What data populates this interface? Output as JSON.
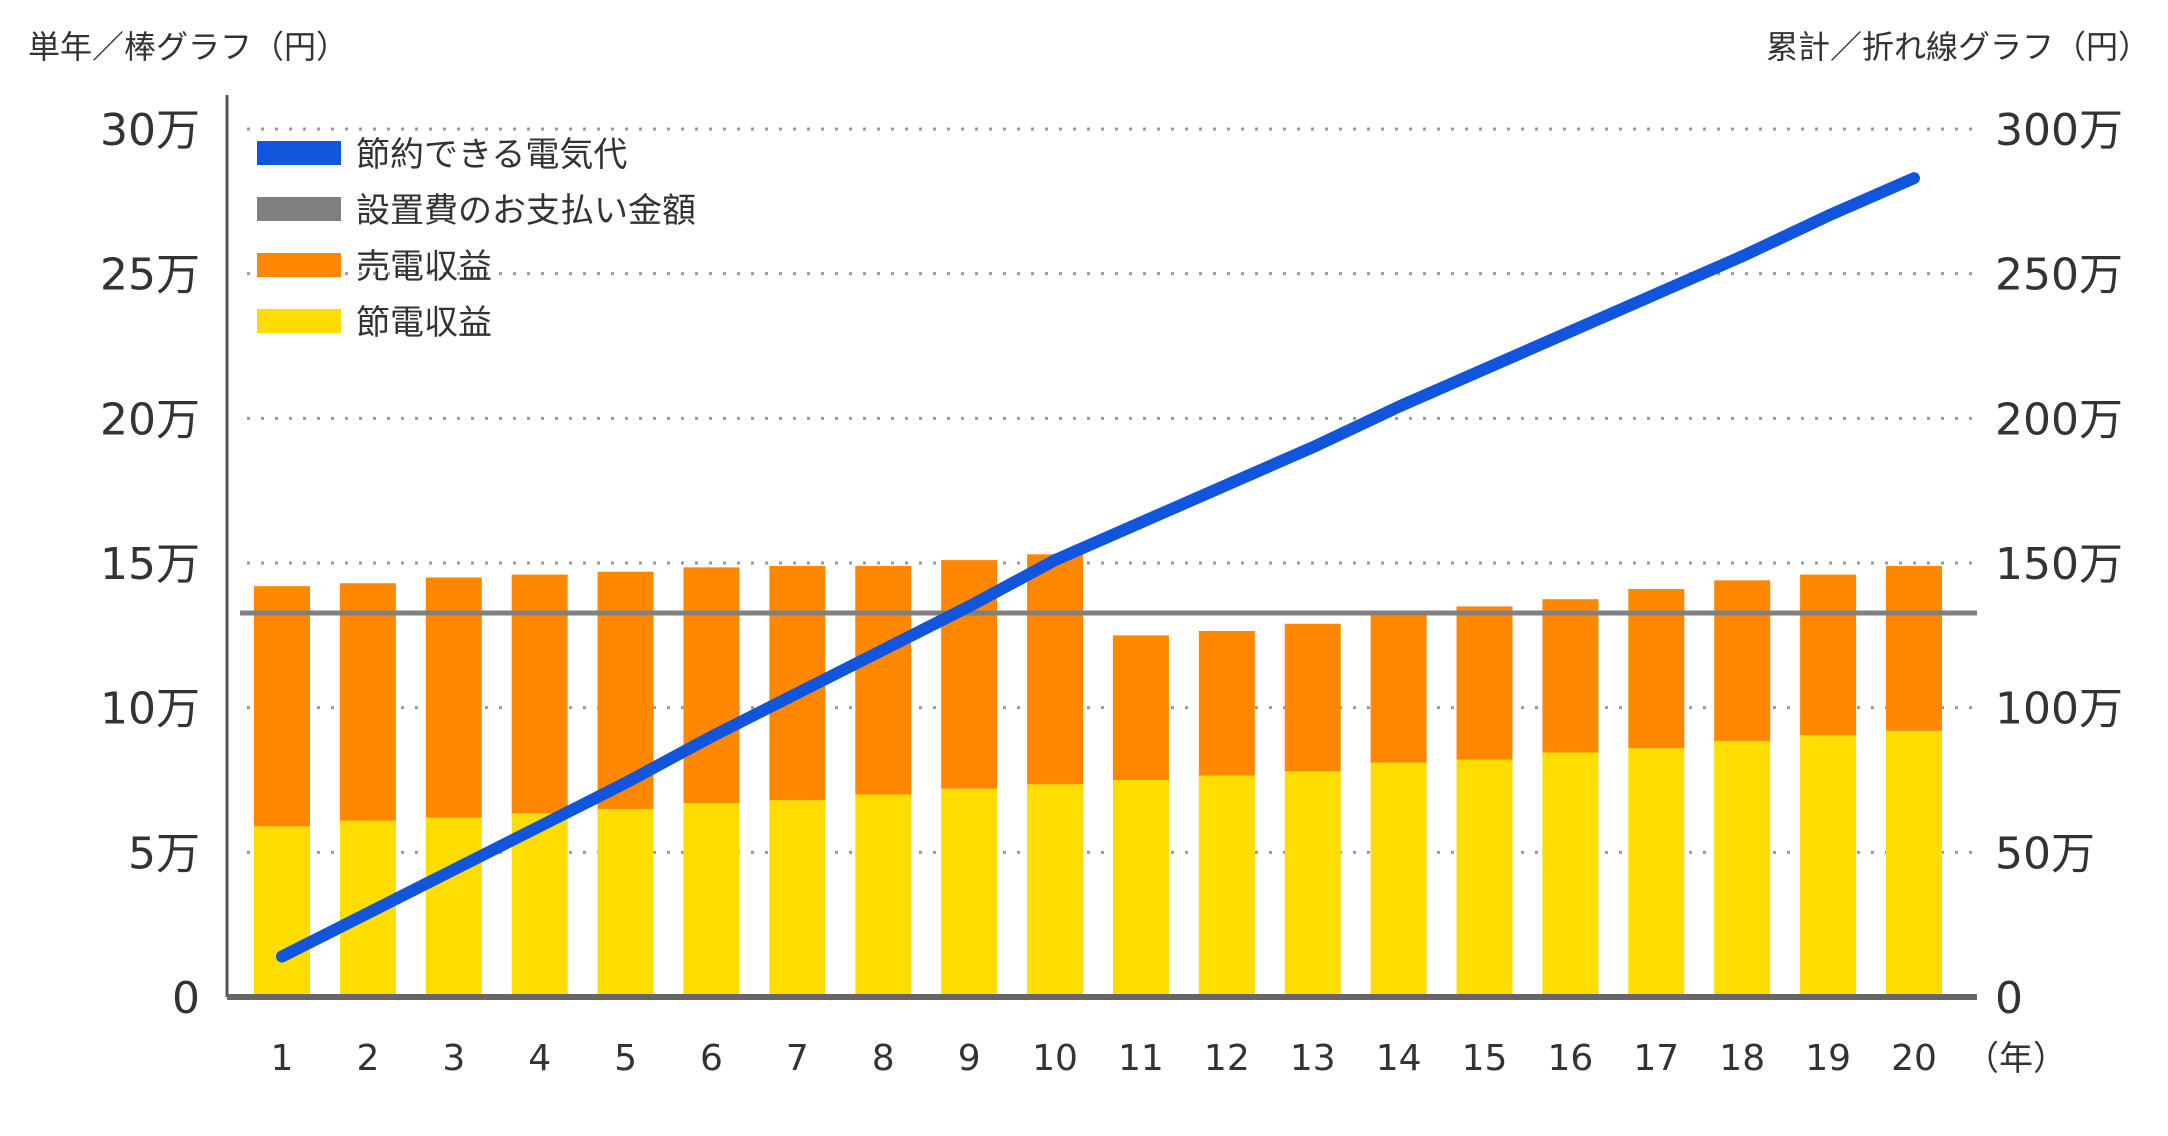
{
  "chart_data": {
    "type": "bar",
    "left_axis_title": "単年／棒グラフ（円）",
    "right_axis_title": "累計／折れ線グラフ（円）",
    "x_unit_label": "（年）",
    "categories": [
      "1",
      "2",
      "3",
      "4",
      "5",
      "6",
      "7",
      "8",
      "9",
      "10",
      "11",
      "12",
      "13",
      "14",
      "15",
      "16",
      "17",
      "18",
      "19",
      "20"
    ],
    "left_ticks": [
      "0",
      "5万",
      "10万",
      "15万",
      "20万",
      "25万",
      "30万"
    ],
    "right_ticks": [
      "0",
      "50万",
      "100万",
      "150万",
      "200万",
      "250万",
      "300万"
    ],
    "ylim_left": [
      0,
      300000
    ],
    "ylim_right": [
      0,
      3000000
    ],
    "grid": "horizontal dotted",
    "legend_position": "top-left",
    "series": [
      {
        "name": "節約できる電気代",
        "type": "line",
        "axis": "right",
        "color": "#1155dd",
        "values": [
          140000,
          290000,
          440000,
          590000,
          740000,
          900000,
          1050000,
          1200000,
          1350000,
          1510000,
          1640000,
          1770000,
          1900000,
          2040000,
          2170000,
          2300000,
          2430000,
          2560000,
          2700000,
          2830000
        ]
      },
      {
        "name": "設置費のお支払い金額",
        "type": "hline",
        "axis": "left",
        "color": "#808080",
        "value": 132700
      },
      {
        "name": "売電収益",
        "type": "bar-stacked",
        "axis": "left",
        "color": "#ff8800",
        "values": [
          83000,
          82000,
          83000,
          82500,
          82000,
          81500,
          81000,
          79000,
          79000,
          79500,
          50000,
          50000,
          51000,
          51000,
          53000,
          53000,
          55000,
          55500,
          55500,
          57000
        ]
      },
      {
        "name": "節電収益",
        "type": "bar-stacked",
        "axis": "left",
        "color": "#ffdd00",
        "values": [
          59000,
          61000,
          62000,
          63500,
          65000,
          67000,
          68000,
          70000,
          72000,
          73500,
          75000,
          76500,
          78000,
          81000,
          82000,
          84500,
          86000,
          88500,
          90500,
          92000
        ]
      }
    ]
  }
}
